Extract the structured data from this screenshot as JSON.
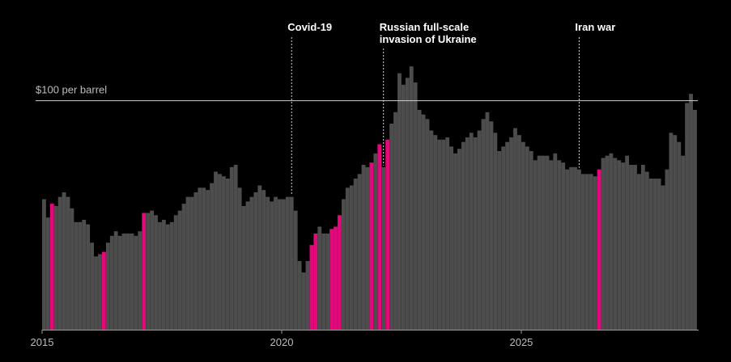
{
  "chart_data": {
    "type": "bar",
    "title": "",
    "xlabel": "",
    "ylabel": "",
    "ylim": [
      0,
      120
    ],
    "x_ticks": [
      "2015",
      "2020",
      "2025"
    ],
    "x_start": 2015,
    "months_per_bar": 1,
    "reference_line": {
      "value": 100,
      "label": "$100 per barrel"
    },
    "annotations": [
      {
        "label": "Covid-19",
        "month_index": 62,
        "lines": [
          "Covid-19"
        ]
      },
      {
        "label": "Russian full-scale invasion of Ukraine",
        "month_index": 85,
        "lines": [
          "Russian full-scale",
          "invasion of Ukraine"
        ]
      },
      {
        "label": "Iran war",
        "month_index": 134,
        "lines": [
          "Iran war"
        ]
      }
    ],
    "colors": {
      "normal": "#4d4d4d",
      "highlight": "#e4097a",
      "background": "#000000",
      "axis": "#9a9a9a",
      "reference": "#cfcfcf"
    },
    "highlight_indices": [
      2,
      15,
      25,
      67,
      68,
      72,
      73,
      74,
      82,
      84,
      86,
      139
    ],
    "values": [
      57,
      49,
      55,
      54,
      58,
      60,
      58,
      53,
      47,
      47,
      48,
      46,
      38,
      32,
      33,
      34,
      38,
      41,
      43,
      41,
      42,
      42,
      42,
      41,
      43,
      51,
      51,
      52,
      50,
      47,
      48,
      46,
      47,
      50,
      52,
      55,
      58,
      58,
      60,
      62,
      62,
      61,
      64,
      69,
      68,
      67,
      66,
      71,
      72,
      62,
      54,
      56,
      58,
      60,
      63,
      61,
      58,
      56,
      58,
      57,
      57,
      58,
      58,
      52,
      30,
      25,
      30,
      37,
      42,
      45,
      42,
      42,
      44,
      45,
      50,
      57,
      62,
      63,
      66,
      68,
      72,
      71,
      73,
      77,
      81,
      71,
      83,
      90,
      95,
      112,
      107,
      110,
      115,
      108,
      96,
      94,
      92,
      87,
      85,
      83,
      83,
      84,
      80,
      77,
      79,
      82,
      84,
      86,
      84,
      87,
      92,
      95,
      91,
      86,
      78,
      80,
      82,
      84,
      88,
      85,
      82,
      80,
      78,
      74,
      76,
      76,
      76,
      74,
      77,
      74,
      73,
      70,
      71,
      71,
      70,
      68,
      68,
      68,
      67,
      70,
      75,
      76,
      77,
      75,
      74,
      73,
      76,
      72,
      72,
      68,
      72,
      69,
      66,
      66,
      66,
      63,
      70,
      86,
      85,
      82,
      76,
      99,
      103,
      96
    ]
  }
}
